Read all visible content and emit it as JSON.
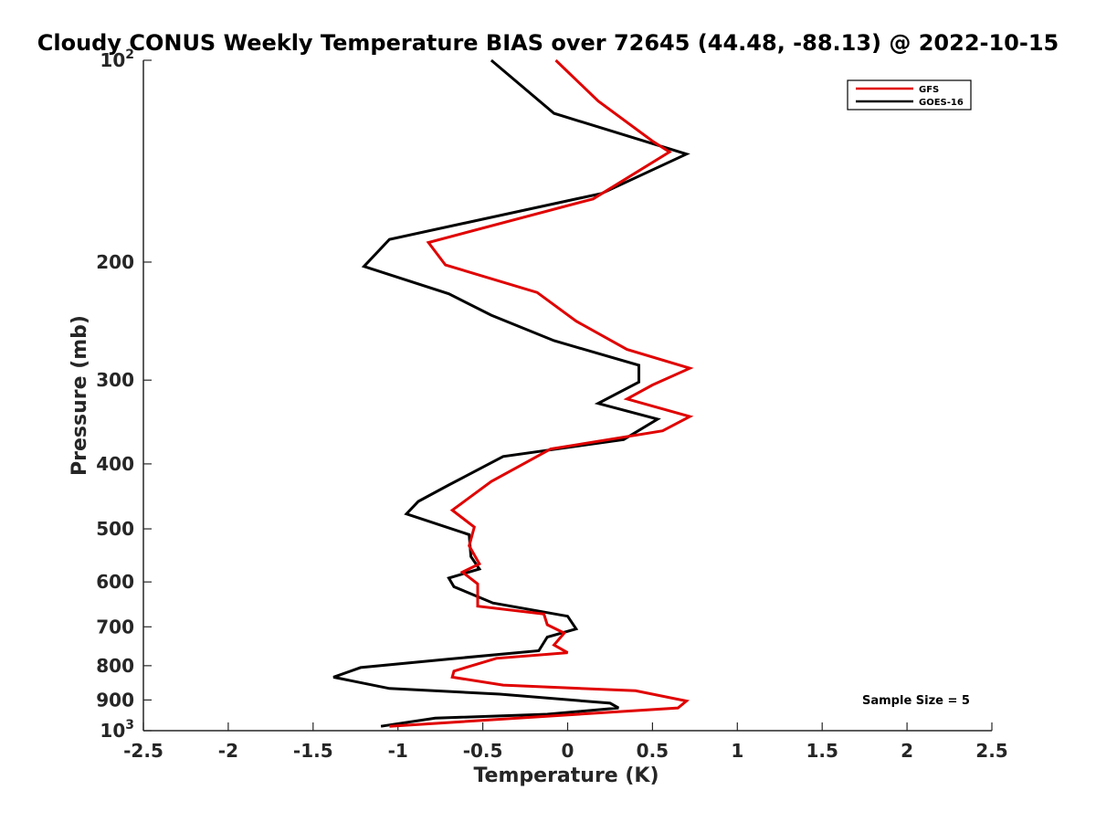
{
  "chart_data": {
    "type": "line",
    "title": "Cloudy CONUS Weekly Temperature BIAS over 72645 (44.48, -88.13) @ 2022-10-15",
    "xlabel": "Temperature (K)",
    "ylabel": "Pressure (mb)",
    "xlim": [
      -2.5,
      2.5
    ],
    "ylim": [
      100,
      1000
    ],
    "y_scale": "log",
    "y_reversed": true,
    "grid": false,
    "legend_position": "top-right",
    "x_ticks": [
      -2.5,
      -2,
      -1.5,
      -1,
      -0.5,
      0,
      0.5,
      1,
      1.5,
      2,
      2.5
    ],
    "x_tick_labels": [
      "-2.5",
      "-2",
      "-1.5",
      "-1",
      "-0.5",
      "0",
      "0.5",
      "1",
      "1.5",
      "2",
      "2.5"
    ],
    "y_ticks": [
      100,
      200,
      300,
      400,
      500,
      600,
      700,
      800,
      900,
      1000
    ],
    "y_tick_labels": [
      "10²",
      "200",
      "300",
      "400",
      "500",
      "600",
      "700",
      "800",
      "900",
      "10³"
    ],
    "annotation": "Sample Size = 5",
    "series": [
      {
        "name": "GFS",
        "color": "#e00000",
        "points": [
          [
            -0.07,
            100
          ],
          [
            0.18,
            115
          ],
          [
            0.5,
            132
          ],
          [
            0.6,
            137
          ],
          [
            0.15,
            161
          ],
          [
            -0.82,
            187
          ],
          [
            -0.72,
            202
          ],
          [
            -0.18,
            222
          ],
          [
            0.05,
            245
          ],
          [
            0.35,
            270
          ],
          [
            0.72,
            288
          ],
          [
            0.5,
            305
          ],
          [
            0.35,
            320
          ],
          [
            0.72,
            340
          ],
          [
            0.56,
            357
          ],
          [
            -0.1,
            380
          ],
          [
            -0.45,
            425
          ],
          [
            -0.68,
            469
          ],
          [
            -0.55,
            497
          ],
          [
            -0.58,
            530
          ],
          [
            -0.52,
            564
          ],
          [
            -0.62,
            580
          ],
          [
            -0.53,
            604
          ],
          [
            -0.53,
            652
          ],
          [
            -0.14,
            670
          ],
          [
            -0.12,
            695
          ],
          [
            -0.02,
            715
          ],
          [
            -0.08,
            745
          ],
          [
            0.0,
            765
          ],
          [
            -0.42,
            780
          ],
          [
            -0.67,
            815
          ],
          [
            -0.68,
            832
          ],
          [
            -0.38,
            855
          ],
          [
            0.4,
            872
          ],
          [
            0.7,
            903
          ],
          [
            0.65,
            925
          ],
          [
            -1.05,
            985
          ]
        ]
      },
      {
        "name": "GOES-16",
        "color": "#000000",
        "points": [
          [
            -0.45,
            100
          ],
          [
            -0.08,
            120
          ],
          [
            0.7,
            138
          ],
          [
            0.2,
            158
          ],
          [
            -1.05,
            185
          ],
          [
            -1.2,
            203
          ],
          [
            -0.7,
            223
          ],
          [
            -0.45,
            240
          ],
          [
            -0.08,
            262
          ],
          [
            0.42,
            285
          ],
          [
            0.42,
            302
          ],
          [
            0.18,
            325
          ],
          [
            0.53,
            343
          ],
          [
            0.33,
            368
          ],
          [
            -0.38,
            390
          ],
          [
            -0.7,
            430
          ],
          [
            -0.88,
            455
          ],
          [
            -0.95,
            475
          ],
          [
            -0.58,
            510
          ],
          [
            -0.57,
            550
          ],
          [
            -0.52,
            574
          ],
          [
            -0.7,
            592
          ],
          [
            -0.67,
            610
          ],
          [
            -0.44,
            645
          ],
          [
            0.0,
            675
          ],
          [
            0.05,
            705
          ],
          [
            -0.12,
            725
          ],
          [
            -0.17,
            760
          ],
          [
            -0.7,
            782
          ],
          [
            -1.22,
            805
          ],
          [
            -1.38,
            832
          ],
          [
            -1.05,
            865
          ],
          [
            -0.4,
            882
          ],
          [
            0.25,
            910
          ],
          [
            0.3,
            925
          ],
          [
            -0.12,
            945
          ],
          [
            -0.78,
            958
          ],
          [
            -1.1,
            985
          ]
        ]
      }
    ]
  }
}
